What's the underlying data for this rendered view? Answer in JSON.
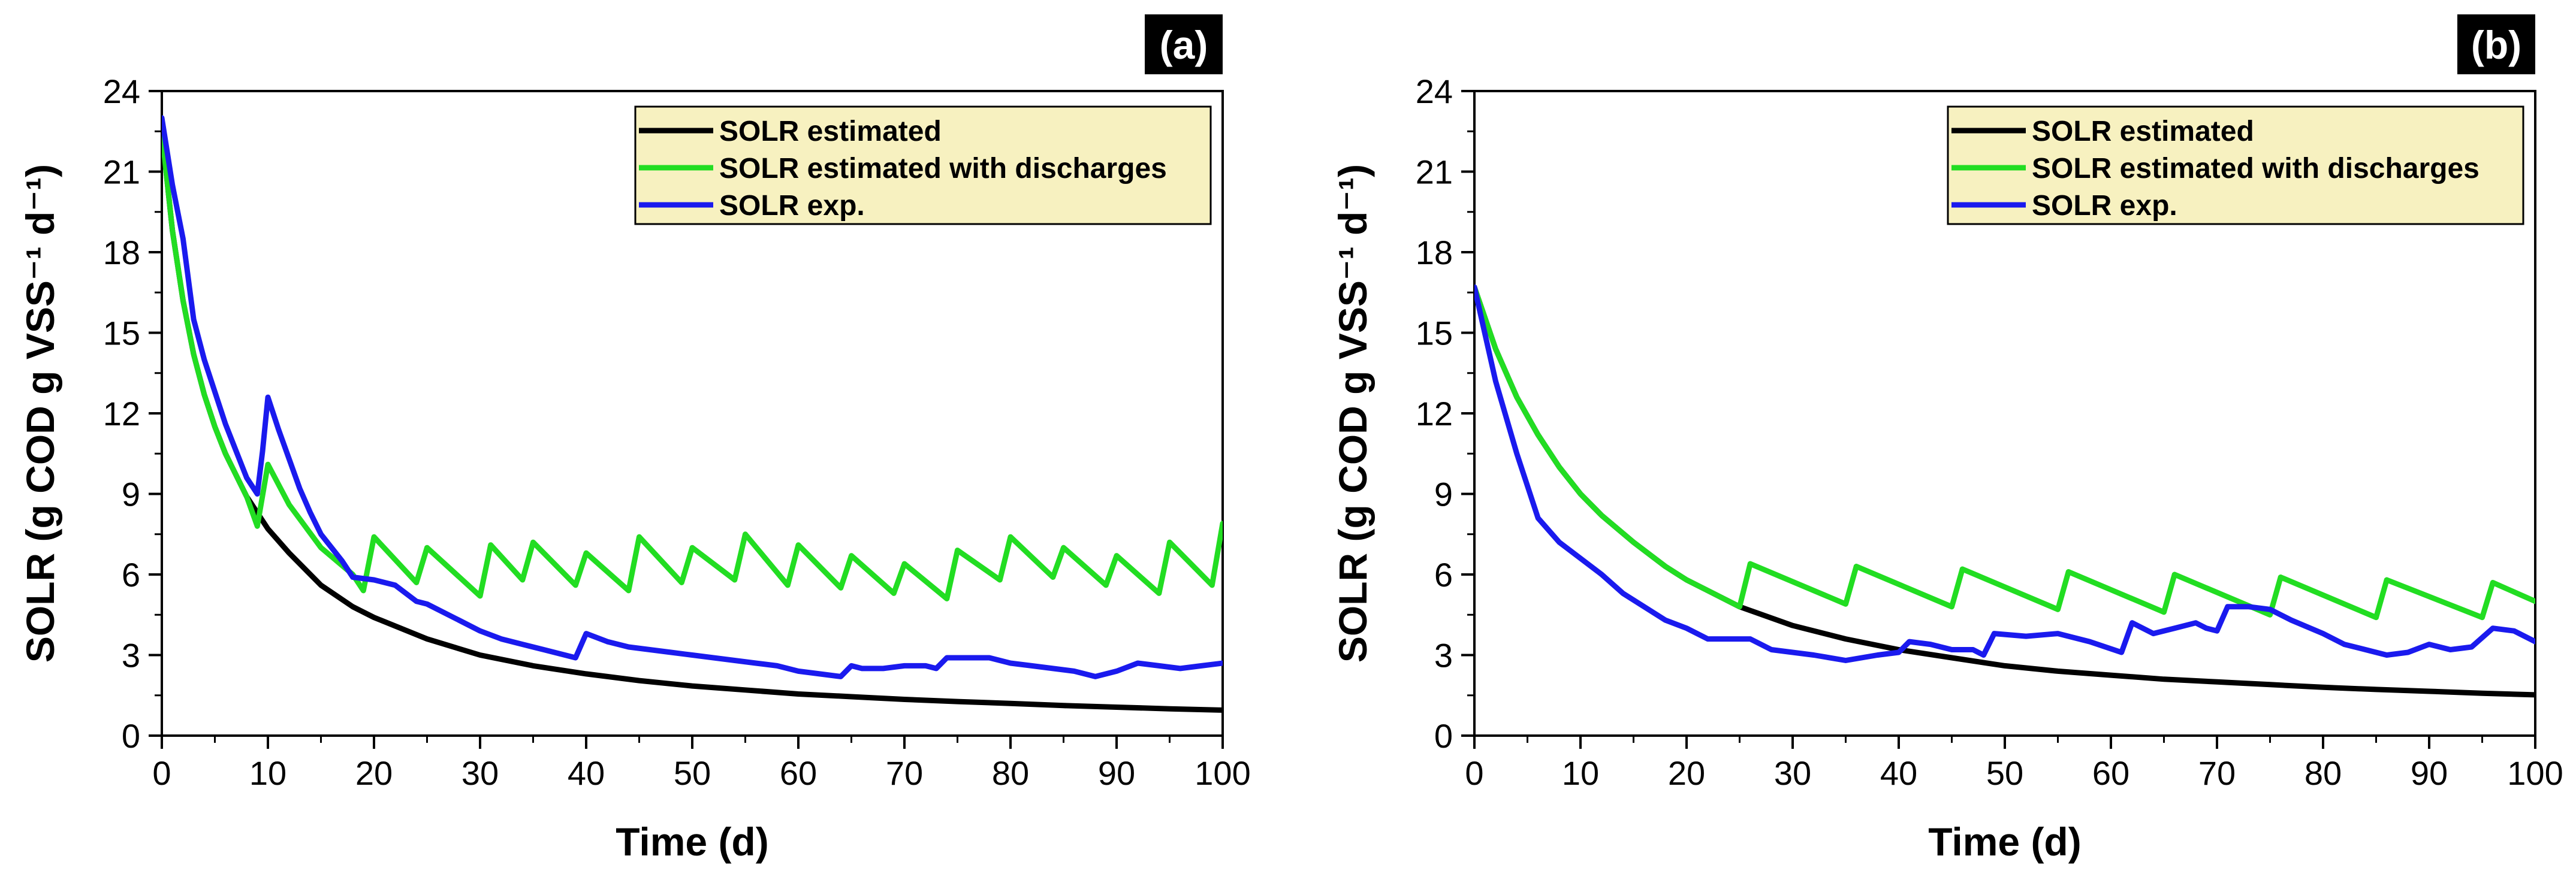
{
  "chart_data": [
    {
      "type": "line",
      "panel_label": "(a)",
      "xlabel": "Time (d)",
      "ylabel": "SOLR (g COD g VSS⁻¹ d⁻¹)",
      "xlim": [
        0,
        100
      ],
      "ylim": [
        0,
        24
      ],
      "xticks": [
        "0",
        "10",
        "20",
        "30",
        "40",
        "50",
        "60",
        "70",
        "80",
        "90",
        "100"
      ],
      "yticks": [
        "0",
        "3",
        "6",
        "9",
        "12",
        "15",
        "18",
        "21",
        "24"
      ],
      "legend_position": "top-right",
      "series": [
        {
          "name": "SOLR estimated",
          "color": "#000000",
          "x": [
            0,
            1,
            2,
            3,
            4,
            5,
            6,
            8,
            10,
            12,
            15,
            18,
            20,
            25,
            30,
            35,
            40,
            45,
            50,
            55,
            60,
            65,
            70,
            75,
            80,
            85,
            90,
            95,
            100
          ],
          "y": [
            22.5,
            18.8,
            16.2,
            14.2,
            12.7,
            11.5,
            10.5,
            8.9,
            7.7,
            6.8,
            5.6,
            4.8,
            4.4,
            3.6,
            3.0,
            2.6,
            2.3,
            2.05,
            1.85,
            1.7,
            1.55,
            1.45,
            1.35,
            1.27,
            1.2,
            1.12,
            1.06,
            1.0,
            0.95
          ]
        },
        {
          "name": "SOLR estimated with discharges",
          "color": "#22dd22",
          "x": [
            0,
            1,
            2,
            3,
            4,
            5,
            6,
            8,
            9,
            10,
            12,
            15,
            18,
            19,
            20,
            24,
            25,
            30,
            31,
            34,
            35,
            39,
            40,
            44,
            45,
            49,
            50,
            54,
            55,
            59,
            60,
            64,
            65,
            69,
            70,
            74,
            75,
            79,
            80,
            84,
            85,
            89,
            90,
            94,
            95,
            99,
            100
          ],
          "y": [
            22.5,
            18.8,
            16.2,
            14.2,
            12.7,
            11.5,
            10.5,
            8.9,
            7.8,
            10.1,
            8.6,
            7.0,
            6.0,
            5.4,
            7.4,
            5.7,
            7.0,
            5.2,
            7.1,
            5.8,
            7.2,
            5.6,
            6.8,
            5.4,
            7.4,
            5.7,
            7.0,
            5.8,
            7.5,
            5.6,
            7.1,
            5.5,
            6.7,
            5.3,
            6.4,
            5.1,
            6.9,
            5.8,
            7.4,
            5.9,
            7.0,
            5.6,
            6.7,
            5.3,
            7.2,
            5.6,
            7.9
          ]
        },
        {
          "name": "SOLR exp.",
          "color": "#1a1aee",
          "x": [
            0,
            1,
            2,
            3,
            4,
            5,
            6,
            7,
            8,
            9,
            9.5,
            10,
            11,
            12,
            13,
            14,
            15,
            17,
            18,
            20,
            22,
            24,
            25,
            28,
            30,
            32,
            34,
            36,
            38,
            39,
            40,
            42,
            44,
            46,
            48,
            50,
            52,
            54,
            56,
            58,
            60,
            62,
            64,
            65,
            66,
            68,
            70,
            72,
            73,
            74,
            76,
            78,
            80,
            82,
            84,
            86,
            88,
            90,
            92,
            94,
            96,
            98,
            100
          ],
          "y": [
            23.0,
            20.5,
            18.5,
            15.5,
            14.0,
            12.8,
            11.6,
            10.6,
            9.6,
            9.0,
            10.6,
            12.6,
            11.4,
            10.3,
            9.2,
            8.3,
            7.5,
            6.5,
            5.9,
            5.8,
            5.6,
            5.0,
            4.9,
            4.3,
            3.9,
            3.6,
            3.4,
            3.2,
            3.0,
            2.9,
            3.8,
            3.5,
            3.3,
            3.2,
            3.1,
            3.0,
            2.9,
            2.8,
            2.7,
            2.6,
            2.4,
            2.3,
            2.2,
            2.6,
            2.5,
            2.5,
            2.6,
            2.6,
            2.5,
            2.9,
            2.9,
            2.9,
            2.7,
            2.6,
            2.5,
            2.4,
            2.2,
            2.4,
            2.7,
            2.6,
            2.5,
            2.6,
            2.7
          ]
        }
      ]
    },
    {
      "type": "line",
      "panel_label": "(b)",
      "xlabel": "Time (d)",
      "ylabel": "SOLR (g COD g VSS⁻¹ d⁻¹)",
      "xlim": [
        0,
        100
      ],
      "ylim": [
        0,
        24
      ],
      "xticks": [
        "0",
        "10",
        "20",
        "30",
        "40",
        "50",
        "60",
        "70",
        "80",
        "90",
        "100"
      ],
      "yticks": [
        "0",
        "3",
        "6",
        "9",
        "12",
        "15",
        "18",
        "21",
        "24"
      ],
      "legend_position": "top-right",
      "series": [
        {
          "name": "SOLR estimated",
          "color": "#000000",
          "x": [
            0,
            2,
            4,
            6,
            8,
            10,
            12,
            15,
            18,
            20,
            22,
            25,
            30,
            35,
            40,
            45,
            50,
            55,
            60,
            65,
            70,
            75,
            80,
            85,
            90,
            95,
            100
          ],
          "y": [
            16.7,
            14.4,
            12.6,
            11.2,
            10.0,
            9.0,
            8.2,
            7.2,
            6.3,
            5.8,
            5.4,
            4.8,
            4.1,
            3.6,
            3.2,
            2.9,
            2.6,
            2.4,
            2.25,
            2.1,
            2.0,
            1.9,
            1.8,
            1.72,
            1.65,
            1.58,
            1.52
          ]
        },
        {
          "name": "SOLR estimated with discharges",
          "color": "#22dd22",
          "x": [
            0,
            2,
            4,
            6,
            8,
            10,
            12,
            15,
            18,
            20,
            22,
            25,
            26,
            35,
            36,
            45,
            46,
            55,
            56,
            65,
            66,
            75,
            76,
            85,
            86,
            95,
            96,
            100
          ],
          "y": [
            16.7,
            14.4,
            12.6,
            11.2,
            10.0,
            9.0,
            8.2,
            7.2,
            6.3,
            5.8,
            5.4,
            4.8,
            6.4,
            4.9,
            6.3,
            4.8,
            6.2,
            4.7,
            6.1,
            4.6,
            6.0,
            4.5,
            5.9,
            4.4,
            5.8,
            4.4,
            5.7,
            5.0
          ]
        },
        {
          "name": "SOLR exp.",
          "color": "#1a1aee",
          "x": [
            0,
            2,
            4,
            6,
            8,
            10,
            12,
            14,
            16,
            18,
            20,
            22,
            24,
            26,
            28,
            30,
            32,
            35,
            38,
            40,
            41,
            43,
            45,
            47,
            48,
            49,
            52,
            55,
            58,
            61,
            62,
            64,
            66,
            68,
            69,
            70,
            71,
            73,
            75,
            77,
            80,
            82,
            84,
            86,
            88,
            90,
            92,
            94,
            96,
            98,
            100
          ],
          "y": [
            16.7,
            13.2,
            10.5,
            8.1,
            7.2,
            6.6,
            6.0,
            5.3,
            4.8,
            4.3,
            4.0,
            3.6,
            3.6,
            3.6,
            3.2,
            3.1,
            3.0,
            2.8,
            3.0,
            3.1,
            3.5,
            3.4,
            3.2,
            3.2,
            3.0,
            3.8,
            3.7,
            3.8,
            3.5,
            3.1,
            4.2,
            3.8,
            4.0,
            4.2,
            4.0,
            3.9,
            4.8,
            4.8,
            4.7,
            4.3,
            3.8,
            3.4,
            3.2,
            3.0,
            3.1,
            3.4,
            3.2,
            3.3,
            4.0,
            3.9,
            3.5
          ]
        }
      ]
    }
  ]
}
